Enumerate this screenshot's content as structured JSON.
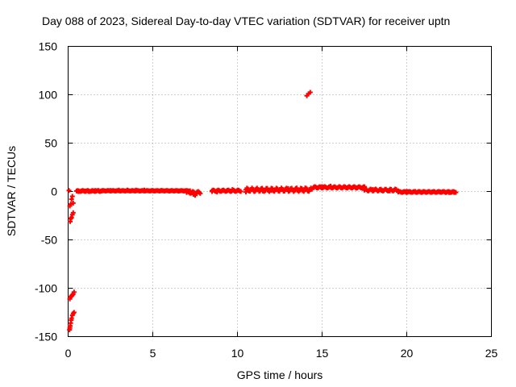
{
  "chart_data": {
    "type": "scatter",
    "title": "Day 088 of 2023, Sidereal Day-to-day VTEC variation (SDTVAR) for receiver uptn",
    "xlabel": "GPS time / hours",
    "ylabel": "SDTVAR / TECUs",
    "xlim": [
      0,
      25
    ],
    "ylim": [
      -150,
      150
    ],
    "xticks": [
      0,
      5,
      10,
      15,
      20,
      25
    ],
    "yticks": [
      -150,
      -100,
      -50,
      0,
      50,
      100,
      150
    ],
    "xtick_labels": [
      "0",
      "5",
      "10",
      "15",
      "20",
      "25"
    ],
    "ytick_labels": [
      "-150",
      "-100",
      "-50",
      "0",
      "50",
      "100",
      "150"
    ],
    "grid": true,
    "marker": "plus",
    "color": "#ff0000",
    "series": [
      {
        "name": "SDTVAR",
        "points": [
          [
            0.05,
            1
          ],
          [
            0.1,
            -15
          ],
          [
            0.15,
            -13
          ],
          [
            0.2,
            -8
          ],
          [
            0.25,
            -5
          ],
          [
            0.3,
            -12
          ],
          [
            0.12,
            -31
          ],
          [
            0.15,
            -28
          ],
          [
            0.2,
            -27
          ],
          [
            0.25,
            -24
          ],
          [
            0.3,
            -22
          ],
          [
            0.1,
            -111
          ],
          [
            0.15,
            -109
          ],
          [
            0.2,
            -108
          ],
          [
            0.25,
            -107
          ],
          [
            0.3,
            -106
          ],
          [
            0.35,
            -104
          ],
          [
            0.08,
            -143
          ],
          [
            0.1,
            -141
          ],
          [
            0.12,
            -139
          ],
          [
            0.15,
            -136
          ],
          [
            0.18,
            -133
          ],
          [
            0.2,
            -131
          ],
          [
            0.25,
            -128
          ],
          [
            0.3,
            -126
          ],
          [
            0.35,
            -125
          ],
          [
            0.6,
            0
          ],
          [
            0.8,
            0.5
          ],
          [
            1.0,
            0.5
          ],
          [
            1.2,
            0
          ],
          [
            1.4,
            0.5
          ],
          [
            1.6,
            1
          ],
          [
            1.8,
            1
          ],
          [
            2.0,
            0.5
          ],
          [
            2.5,
            1
          ],
          [
            3.0,
            1.5
          ],
          [
            3.5,
            1.5
          ],
          [
            4.0,
            1.5
          ],
          [
            4.5,
            1.5
          ],
          [
            5.0,
            1
          ],
          [
            5.5,
            1
          ],
          [
            6.0,
            0.5
          ],
          [
            6.5,
            0.5
          ],
          [
            7.0,
            0.5
          ],
          [
            7.3,
            -1
          ],
          [
            7.4,
            -3
          ],
          [
            7.5,
            -4
          ],
          [
            7.6,
            -2
          ],
          [
            8.5,
            0
          ],
          [
            8.8,
            -0.5
          ],
          [
            9.1,
            1
          ],
          [
            9.4,
            1
          ],
          [
            9.7,
            2
          ],
          [
            10.0,
            1
          ],
          [
            10.5,
            -0.5
          ],
          [
            11.0,
            0
          ],
          [
            11.5,
            0.5
          ],
          [
            12.0,
            1
          ],
          [
            12.5,
            2
          ],
          [
            13.0,
            3
          ],
          [
            13.5,
            3.5
          ],
          [
            14.0,
            3.5
          ],
          [
            14.1,
            99
          ],
          [
            14.2,
            101
          ],
          [
            14.3,
            102.5
          ],
          [
            14.5,
            4
          ],
          [
            15.0,
            5
          ],
          [
            15.5,
            5.5
          ],
          [
            16.0,
            5
          ],
          [
            16.5,
            4
          ],
          [
            17.0,
            3.5
          ],
          [
            17.5,
            3
          ],
          [
            18.0,
            2
          ],
          [
            18.5,
            1
          ],
          [
            19.0,
            0.5
          ],
          [
            19.5,
            0
          ],
          [
            20.0,
            0
          ],
          [
            20.5,
            0
          ],
          [
            21.0,
            0
          ],
          [
            21.5,
            -0.5
          ],
          [
            22.0,
            -0.5
          ],
          [
            22.5,
            -1
          ],
          [
            22.8,
            -1
          ]
        ]
      }
    ],
    "segments": [
      {
        "x0": 0.5,
        "x1": 2.0,
        "y0": 0,
        "y1": 1
      },
      {
        "x0": 2.0,
        "x1": 7.2,
        "y0": 0.5,
        "y1": 1
      },
      {
        "x0": 7.0,
        "x1": 7.8,
        "y0": -2,
        "y1": 0
      },
      {
        "x0": 8.5,
        "x1": 10.2,
        "y0": 0,
        "y1": 1.5
      },
      {
        "x0": 10.5,
        "x1": 14.4,
        "y0": 0,
        "y1": 3.5
      },
      {
        "x0": 14.5,
        "x1": 17.5,
        "y0": 3.5,
        "y1": 5
      },
      {
        "x0": 17.5,
        "x1": 19.5,
        "y0": 0.5,
        "y1": 2.5
      },
      {
        "x0": 19.5,
        "x1": 22.9,
        "y0": -1,
        "y1": 0
      }
    ]
  }
}
